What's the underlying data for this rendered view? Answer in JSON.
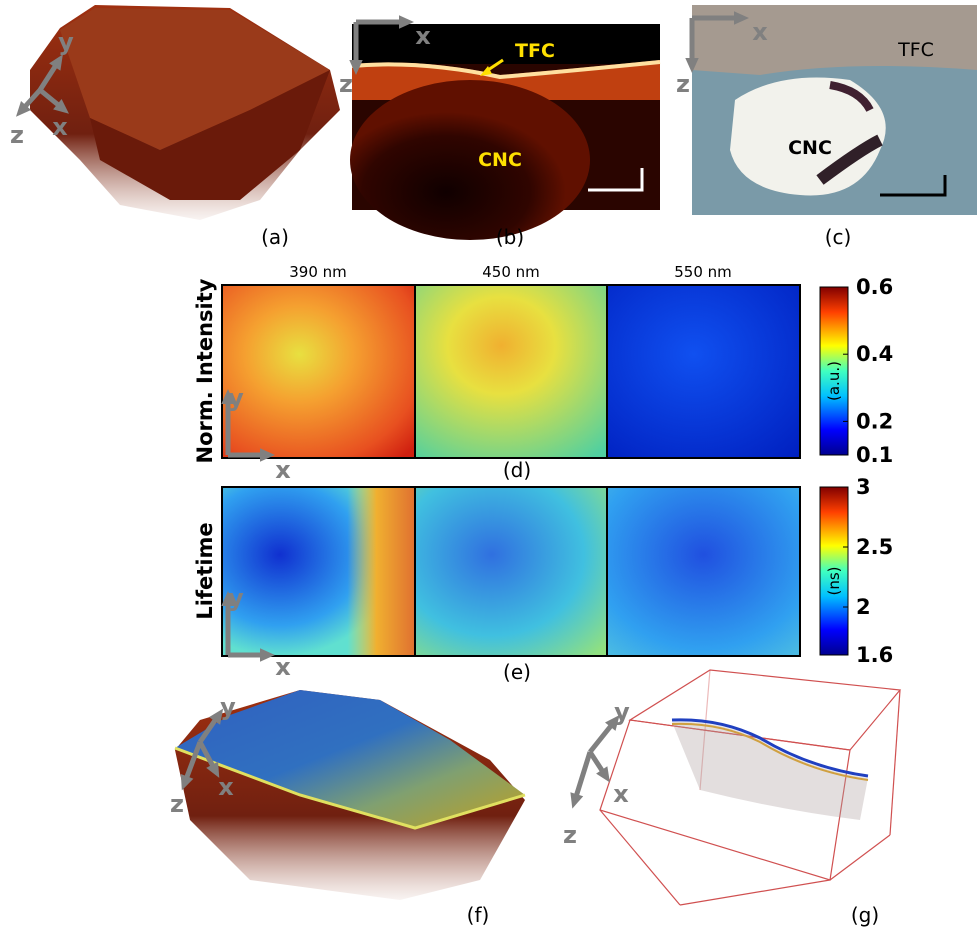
{
  "panels": {
    "a": {
      "label": "(a)",
      "axes": [
        "x",
        "y",
        "z"
      ]
    },
    "b": {
      "label": "(b)",
      "axes": [
        "x",
        "z"
      ],
      "annotations": [
        "TFC",
        "CNC"
      ]
    },
    "c": {
      "label": "(c)",
      "axes": [
        "x",
        "z"
      ],
      "annotations": [
        "TFC",
        "CNC"
      ]
    },
    "d": {
      "label": "(d)",
      "row_title": "Norm. Intensity",
      "columns": [
        "390 nm",
        "450 nm",
        "550 nm"
      ],
      "axes": [
        "x",
        "y"
      ],
      "colorbar": {
        "unit": "(a.u.)",
        "lim": [
          0.1,
          0.6
        ],
        "ticks": [
          0.1,
          0.2,
          0.4,
          0.6
        ]
      }
    },
    "e": {
      "label": "(e)",
      "row_title": "Lifetime",
      "axes": [
        "x",
        "y"
      ],
      "colorbar": {
        "unit": "(ns)",
        "lim": [
          1.6,
          3
        ],
        "ticks": [
          1.6,
          2,
          2.5,
          3
        ]
      }
    },
    "f": {
      "label": "(f)",
      "axes": [
        "x",
        "y",
        "z"
      ]
    },
    "g": {
      "label": "(g)",
      "axes": [
        "x",
        "y",
        "z"
      ]
    }
  }
}
